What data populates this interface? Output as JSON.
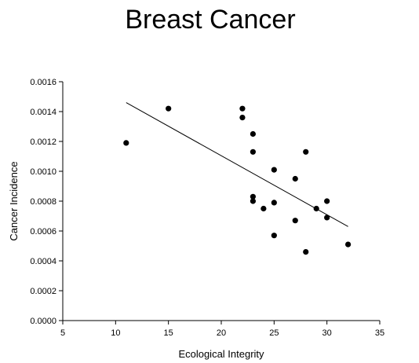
{
  "chart_data": {
    "type": "scatter",
    "title": "Breast Cancer",
    "xlabel": "Ecological Integrity",
    "ylabel": "Cancer Incidence",
    "xlim": [
      5,
      35
    ],
    "ylim": [
      0,
      0.0016
    ],
    "x_ticks": [
      "5",
      "10",
      "15",
      "20",
      "25",
      "30",
      "35"
    ],
    "y_ticks": [
      "0.0000",
      "0.0002",
      "0.0004",
      "0.0006",
      "0.0008",
      "0.0010",
      "0.0012",
      "0.0014",
      "0.0016"
    ],
    "grid": false,
    "legend": "none",
    "points": [
      {
        "x": 11,
        "y": 0.00119
      },
      {
        "x": 15,
        "y": 0.00142
      },
      {
        "x": 22,
        "y": 0.00142
      },
      {
        "x": 22,
        "y": 0.00136
      },
      {
        "x": 23,
        "y": 0.00125
      },
      {
        "x": 23,
        "y": 0.00113
      },
      {
        "x": 23,
        "y": 0.00083
      },
      {
        "x": 23,
        "y": 0.0008
      },
      {
        "x": 24,
        "y": 0.00075
      },
      {
        "x": 25,
        "y": 0.00101
      },
      {
        "x": 25,
        "y": 0.00079
      },
      {
        "x": 25,
        "y": 0.00057
      },
      {
        "x": 27,
        "y": 0.00095
      },
      {
        "x": 27,
        "y": 0.00067
      },
      {
        "x": 28,
        "y": 0.00113
      },
      {
        "x": 28,
        "y": 0.00046
      },
      {
        "x": 29,
        "y": 0.00075
      },
      {
        "x": 30,
        "y": 0.0008
      },
      {
        "x": 30,
        "y": 0.00069
      },
      {
        "x": 32,
        "y": 0.00051
      }
    ],
    "trendline": {
      "x": [
        11,
        32
      ],
      "y": [
        0.00146,
        0.00063
      ]
    },
    "colors": {
      "points": "#000000",
      "line": "#000000",
      "axes": "#000000"
    }
  }
}
